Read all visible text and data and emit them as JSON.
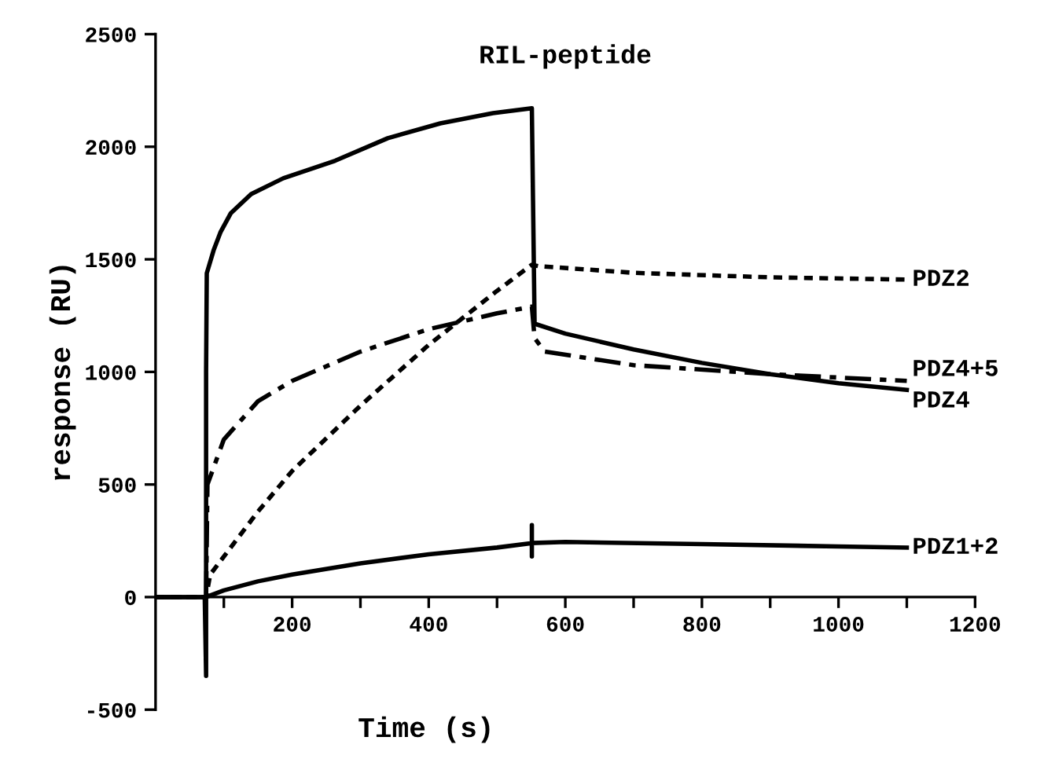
{
  "chart_data": {
    "type": "line",
    "title": "RIL-peptide",
    "xlabel": "Time (s)",
    "ylabel": "response (RU)",
    "xlim": [
      0,
      1200
    ],
    "xticks": [
      {
        "value": 100,
        "label": null
      },
      200,
      {
        "value": 300,
        "label": null
      },
      400,
      {
        "value": 500,
        "label": null
      },
      600,
      {
        "value": 700,
        "label": null
      },
      800,
      {
        "value": 900,
        "label": null
      },
      1000,
      {
        "value": 1100,
        "label": null
      },
      1200
    ],
    "ylim": [
      -500,
      2500
    ],
    "yticks": [
      -500,
      0,
      500,
      1000,
      1500,
      2000,
      2500
    ],
    "grid": false,
    "legend": false,
    "marker": "none",
    "series": [
      {
        "name": "PDZ2",
        "color": "#000000",
        "line_style": "dotted",
        "x": [
          0,
          74,
          80,
          150,
          200,
          300,
          400,
          500,
          551,
          560,
          700,
          900,
          1100
        ],
        "values": [
          0,
          0,
          100,
          380,
          560,
          850,
          1120,
          1360,
          1476,
          1470,
          1440,
          1420,
          1410
        ]
      },
      {
        "name": "PDZ4+5",
        "color": "#000000",
        "line_style": "dashdot",
        "x": [
          0,
          74,
          76,
          100,
          150,
          200,
          300,
          400,
          500,
          551,
          555,
          570,
          700,
          900,
          1100
        ],
        "values": [
          0,
          0,
          500,
          700,
          870,
          960,
          1090,
          1190,
          1260,
          1290,
          1150,
          1090,
          1030,
          990,
          960
        ]
      },
      {
        "name": "PDZ4",
        "color": "#000000",
        "line_style": "solid",
        "x": [
          0,
          72,
          74,
          74,
          75,
          85,
          95,
          110,
          140,
          187,
          263,
          340,
          417,
          494,
          551,
          555,
          600,
          700,
          800,
          900,
          1000,
          1100
        ],
        "values": [
          0,
          0,
          -350,
          1000,
          1438,
          1540,
          1620,
          1704,
          1790,
          1860,
          1938,
          2038,
          2104,
          2149,
          2171,
          1214,
          1170,
          1100,
          1040,
          990,
          950,
          920
        ]
      },
      {
        "name": "PDZ1+2",
        "color": "#000000",
        "line_style": "solid",
        "x": [
          0,
          74,
          100,
          150,
          200,
          300,
          400,
          500,
          551,
          551,
          551,
          551,
          600,
          800,
          1000,
          1100
        ],
        "values": [
          0,
          0,
          30,
          70,
          100,
          150,
          190,
          220,
          240,
          320,
          180,
          240,
          245,
          235,
          225,
          220
        ]
      }
    ]
  }
}
